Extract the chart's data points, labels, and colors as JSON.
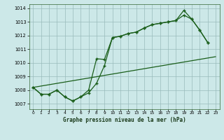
{
  "title": "Graphe pression niveau de la mer (hPa)",
  "bg_color": "#cce8e8",
  "grid_color": "#99bbbb",
  "line_color": "#1a5e1a",
  "x_ticks": [
    0,
    1,
    2,
    3,
    4,
    5,
    6,
    7,
    8,
    9,
    10,
    11,
    12,
    13,
    14,
    15,
    16,
    17,
    18,
    19,
    20,
    21,
    22,
    23
  ],
  "yticks": [
    1007,
    1008,
    1009,
    1010,
    1011,
    1012,
    1013,
    1014
  ],
  "ylim_low": 1006.6,
  "ylim_high": 1014.3,
  "series1": [
    1008.2,
    1007.7,
    1007.7,
    1008.0,
    1007.5,
    1007.2,
    1007.5,
    1007.8,
    1008.5,
    1009.8,
    1011.85,
    1011.95,
    1012.15,
    1012.25,
    1012.55,
    1012.8,
    1012.9,
    1013.0,
    1013.1,
    1013.5,
    1013.2,
    1012.4,
    1011.5,
    null
  ],
  "series2": [
    1008.2,
    1007.7,
    1007.7,
    1008.0,
    1007.5,
    1007.2,
    1007.5,
    1008.0,
    1010.3,
    1010.25,
    1011.85,
    1011.95,
    1012.15,
    1012.25,
    1012.55,
    1012.8,
    1012.9,
    1013.0,
    1013.1,
    1013.85,
    1013.2,
    1012.4,
    1011.5,
    null
  ],
  "series3_x": [
    0,
    23
  ],
  "series3_y": [
    1008.2,
    1010.45
  ]
}
